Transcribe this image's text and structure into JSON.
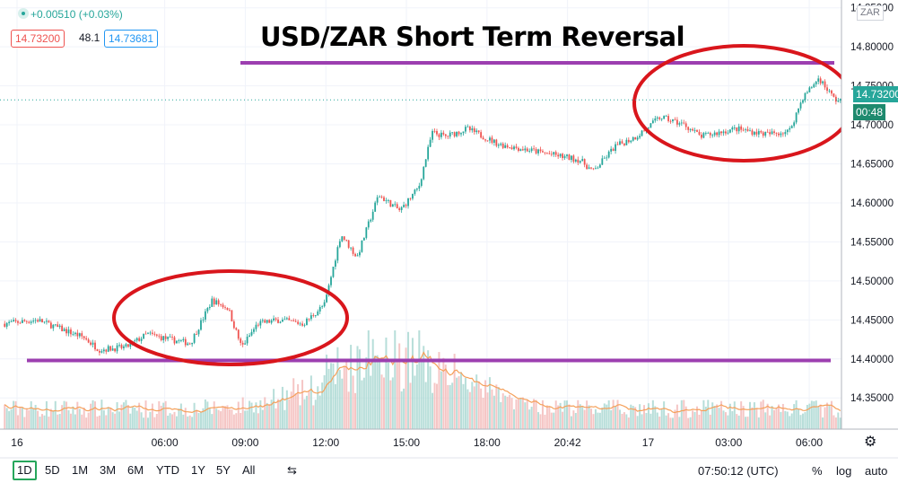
{
  "header": {
    "change": "+0.00510 (+0.03%)",
    "bid": "14.73200",
    "spread": "48.1",
    "ask": "14.73681",
    "currency": "ZAR"
  },
  "annotations": {
    "title": "USD/ZAR Short Term Reversal",
    "resistance_level": 14.768,
    "support_level": 14.398,
    "line_color": "#9c3fb0",
    "circle_color": "#d9161c"
  },
  "price_labels": {
    "last_price": "14.73200",
    "countdown": "00:48"
  },
  "bottom_bar": {
    "timeframes": [
      "1D",
      "5D",
      "1M",
      "3M",
      "6M",
      "YTD",
      "1Y",
      "5Y",
      "All"
    ],
    "active_timeframe": "1D",
    "clock": "07:50:12 (UTC)",
    "percent_label": "%",
    "log_label": "log",
    "auto_label": "auto"
  },
  "colors": {
    "up": "#26a69a",
    "down": "#ef5350",
    "volume_ma": "#f5a05a",
    "axis_text": "#131722"
  },
  "chart_data": {
    "type": "candlestick",
    "symbol": "USD/ZAR",
    "ylim": [
      14.31,
      14.86
    ],
    "y_ticks": [
      14.35,
      14.4,
      14.45,
      14.5,
      14.55,
      14.6,
      14.65,
      14.7,
      14.75,
      14.8,
      14.85
    ],
    "y_tick_labels": [
      "14.35000",
      "14.40000",
      "14.45000",
      "14.50000",
      "14.55000",
      "14.60000",
      "14.65000",
      "14.70000",
      "14.75000",
      "14.80000",
      "14.85000"
    ],
    "x_tick_labels": [
      "16",
      "06:00",
      "09:00",
      "12:00",
      "15:00",
      "18:00",
      "20:42",
      "17",
      "03:00",
      "06:00"
    ],
    "x_range_hours": [
      0,
      31.2
    ],
    "x_tick_hours": [
      0.5,
      6,
      9,
      12,
      15,
      18,
      21,
      24,
      27,
      30
    ],
    "price_path": [
      {
        "t": 0.0,
        "p": 14.445
      },
      {
        "t": 1.3,
        "p": 14.45
      },
      {
        "t": 2.2,
        "p": 14.438
      },
      {
        "t": 3.0,
        "p": 14.428
      },
      {
        "t": 3.6,
        "p": 14.412
      },
      {
        "t": 4.6,
        "p": 14.415
      },
      {
        "t": 5.4,
        "p": 14.432
      },
      {
        "t": 6.2,
        "p": 14.425
      },
      {
        "t": 7.0,
        "p": 14.42
      },
      {
        "t": 7.8,
        "p": 14.475
      },
      {
        "t": 8.4,
        "p": 14.465
      },
      {
        "t": 8.9,
        "p": 14.415
      },
      {
        "t": 9.5,
        "p": 14.445
      },
      {
        "t": 10.3,
        "p": 14.45
      },
      {
        "t": 11.2,
        "p": 14.445
      },
      {
        "t": 12.0,
        "p": 14.47
      },
      {
        "t": 12.6,
        "p": 14.56
      },
      {
        "t": 13.2,
        "p": 14.53
      },
      {
        "t": 14.0,
        "p": 14.61
      },
      {
        "t": 14.8,
        "p": 14.59
      },
      {
        "t": 15.5,
        "p": 14.62
      },
      {
        "t": 16.0,
        "p": 14.69
      },
      {
        "t": 16.5,
        "p": 14.685
      },
      {
        "t": 17.3,
        "p": 14.695
      },
      {
        "t": 18.5,
        "p": 14.675
      },
      {
        "t": 20.0,
        "p": 14.665
      },
      {
        "t": 21.5,
        "p": 14.655
      },
      {
        "t": 22.0,
        "p": 14.64
      },
      {
        "t": 22.8,
        "p": 14.672
      },
      {
        "t": 23.6,
        "p": 14.685
      },
      {
        "t": 24.5,
        "p": 14.71
      },
      {
        "t": 25.4,
        "p": 14.7
      },
      {
        "t": 26.0,
        "p": 14.685
      },
      {
        "t": 27.3,
        "p": 14.695
      },
      {
        "t": 28.5,
        "p": 14.688
      },
      {
        "t": 29.3,
        "p": 14.692
      },
      {
        "t": 29.8,
        "p": 14.735
      },
      {
        "t": 30.4,
        "p": 14.76
      },
      {
        "t": 31.0,
        "p": 14.732
      }
    ],
    "volume_peak_hours": [
      13.5,
      15.5
    ],
    "series": [
      {
        "name": "USD/ZAR 1m",
        "kind": "candles"
      },
      {
        "name": "Volume",
        "kind": "histogram"
      },
      {
        "name": "Volume MA",
        "kind": "line"
      }
    ]
  }
}
